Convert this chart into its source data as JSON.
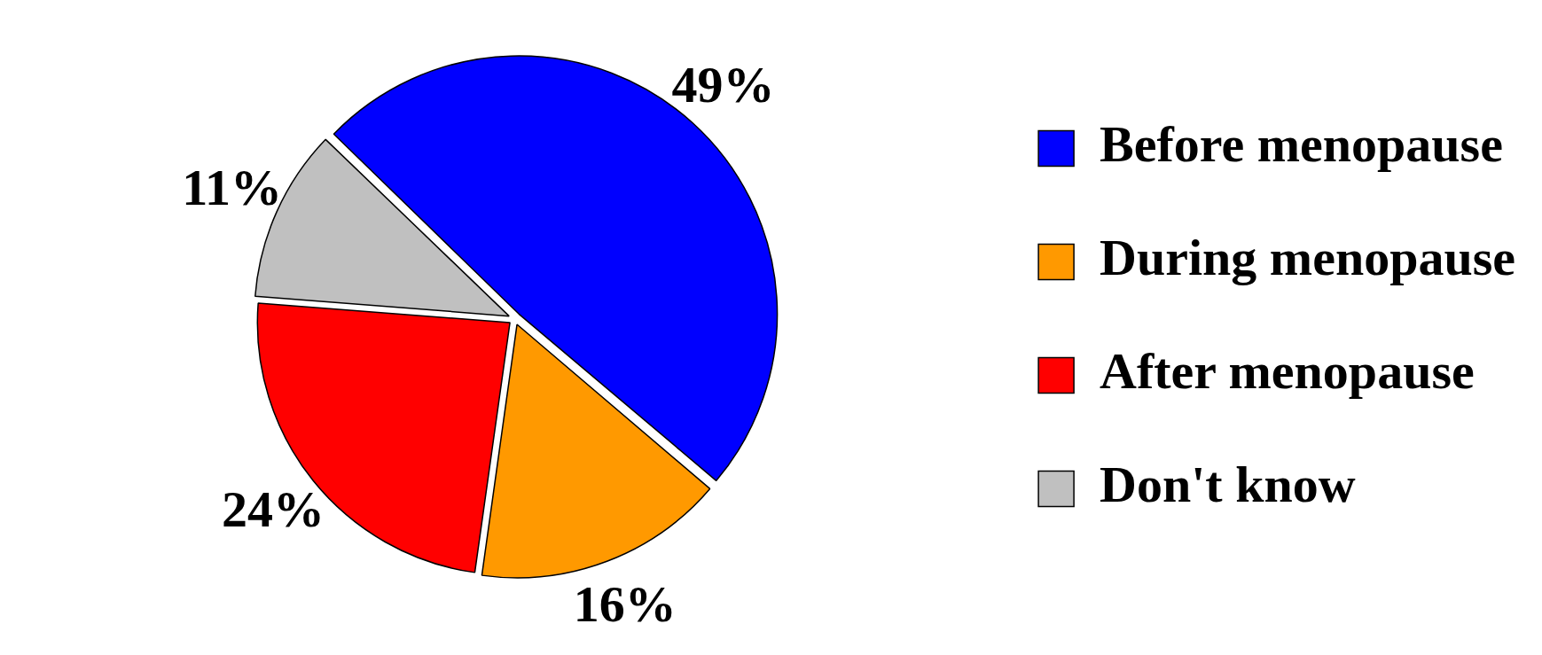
{
  "chart_data": {
    "type": "pie",
    "categories": [
      "Before menopause",
      "During menopause",
      "After menopause",
      "Don't know"
    ],
    "values": [
      49,
      16,
      24,
      11
    ],
    "colors": [
      "#0000ff",
      "#ff9900",
      "#ff0000",
      "#c0c0c0"
    ],
    "value_labels": [
      "49%",
      "16%",
      "24%",
      "11%"
    ],
    "legend": "right"
  }
}
